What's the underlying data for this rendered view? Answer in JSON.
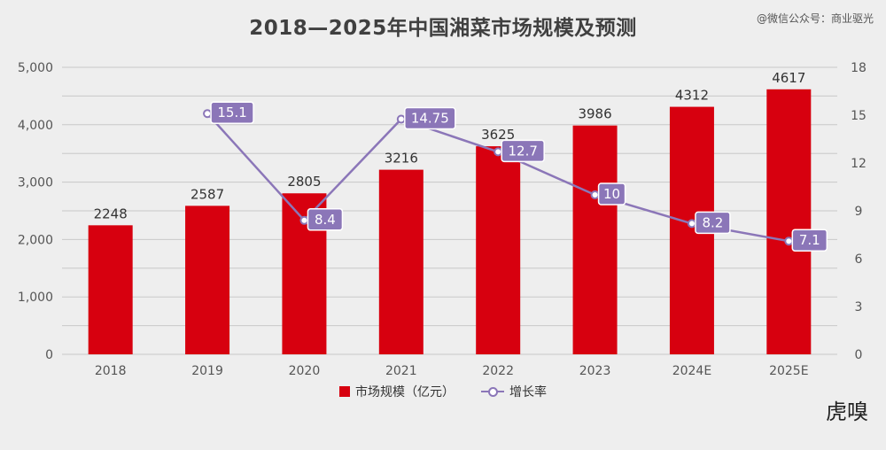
{
  "title": "2018—2025年中国湘菜市场规模及预测",
  "watermark": "@微信公众号：商业驱光",
  "brand": "虎嗅",
  "chart_data": {
    "type": "bar",
    "title": "2018—2025年中国湘菜市场规模及预测",
    "categories": [
      "2018",
      "2019",
      "2020",
      "2021",
      "2022",
      "2023",
      "2024E",
      "2025E"
    ],
    "series": [
      {
        "name": "市场规模（亿元）",
        "type": "bar",
        "axis": "left",
        "color": "#d7000f",
        "values": [
          2248,
          2587,
          2805,
          3216,
          3625,
          3986,
          4312,
          4617
        ],
        "labels": [
          "2248",
          "2587",
          "2805",
          "3216",
          "3625",
          "3986",
          "4312",
          "4617"
        ]
      },
      {
        "name": "增长率",
        "type": "line",
        "axis": "right",
        "color": "#8b76b8",
        "values": [
          null,
          15.1,
          8.4,
          14.75,
          12.7,
          10,
          8.2,
          7.1
        ],
        "labels": [
          "",
          "15.1",
          "8.4",
          "14.75",
          "12.7",
          "10",
          "8.2",
          "7.1"
        ]
      }
    ],
    "ylim_left": [
      0,
      5000
    ],
    "yticks_left": [
      0,
      1000,
      2000,
      3000,
      4000,
      5000
    ],
    "yticklabels_left": [
      "0",
      "1,000",
      "2,000",
      "3,000",
      "4,000",
      "5,000"
    ],
    "ylim_right": [
      0,
      18
    ],
    "yticks_right": [
      0,
      3,
      6,
      9,
      12,
      15,
      18
    ],
    "yticklabels_right": [
      "0",
      "3",
      "6",
      "9",
      "12",
      "15",
      "18"
    ],
    "grid": true,
    "legend_position": "bottom"
  }
}
